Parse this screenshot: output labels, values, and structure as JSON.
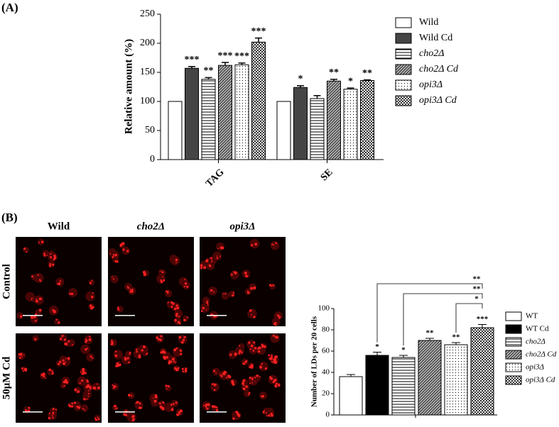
{
  "chart_data": [
    {
      "type": "bar",
      "panel": "(A)",
      "ylabel": "Relative amount (%)",
      "categories": [
        "TAG",
        "SE"
      ],
      "ylim": [
        0,
        250
      ],
      "yticks": [
        0,
        50,
        100,
        150,
        200,
        250
      ],
      "series": [
        {
          "name": "Wild",
          "color": "#ffffff",
          "pattern": "solid",
          "values": [
            100,
            100
          ],
          "errors": [
            0,
            0
          ],
          "labels": [
            null,
            null
          ]
        },
        {
          "name": "Wild Cd",
          "color": "#454545",
          "pattern": "solid",
          "values": [
            157,
            124
          ],
          "errors": [
            3,
            3
          ],
          "labels": [
            "***",
            "*"
          ]
        },
        {
          "name": "cho2Δ",
          "color": "#000000",
          "pattern": "hlines",
          "values": [
            138,
            105
          ],
          "errors": [
            3,
            5
          ],
          "labels": [
            "**",
            null
          ]
        },
        {
          "name": "cho2Δ Cd",
          "color": "#888888",
          "pattern": "diag",
          "values": [
            162,
            135
          ],
          "errors": [
            5,
            3
          ],
          "labels": [
            "***",
            "**"
          ]
        },
        {
          "name": "opi3Δ",
          "color": "#000000",
          "pattern": "dots",
          "values": [
            163,
            121
          ],
          "errors": [
            3,
            2
          ],
          "labels": [
            "***",
            "*"
          ]
        },
        {
          "name": "opi3Δ Cd",
          "color": "#555555",
          "pattern": "checker",
          "values": [
            202,
            136
          ],
          "errors": [
            7,
            1
          ],
          "labels": [
            "***",
            "**"
          ]
        }
      ]
    },
    {
      "type": "bar",
      "panel": "(B)",
      "ylabel": "Number of LDs per 20 cells",
      "columns": [
        "Wild",
        "cho2Δ",
        "opi3Δ"
      ],
      "rows": [
        "Control",
        "50μM Cd"
      ],
      "categories": [
        "WT",
        "WT Cd",
        "cho2Δ",
        "cho2Δ Cd",
        "opi3Δ",
        "opi3Δ Cd"
      ],
      "colors": [
        "#ffffff",
        "#000000",
        "#000000",
        "#888888",
        "#000000",
        "#555555"
      ],
      "patterns": [
        "solid",
        "solid",
        "hlines",
        "diag",
        "dots",
        "checker"
      ],
      "values": [
        36,
        56,
        54,
        70,
        66,
        82
      ],
      "errors": [
        2,
        3,
        2,
        2,
        2,
        3
      ],
      "labels": [
        null,
        "*",
        "*",
        "**",
        "**",
        "***"
      ],
      "ylim": [
        0,
        100
      ],
      "yticks": [
        0,
        20,
        40,
        60,
        80,
        100
      ],
      "comparisons": [
        {
          "from": 1,
          "to": 5,
          "label": "**"
        },
        {
          "from": 2,
          "to": 5,
          "label": "**"
        },
        {
          "from": 4,
          "to": 5,
          "label": "*"
        }
      ]
    }
  ]
}
